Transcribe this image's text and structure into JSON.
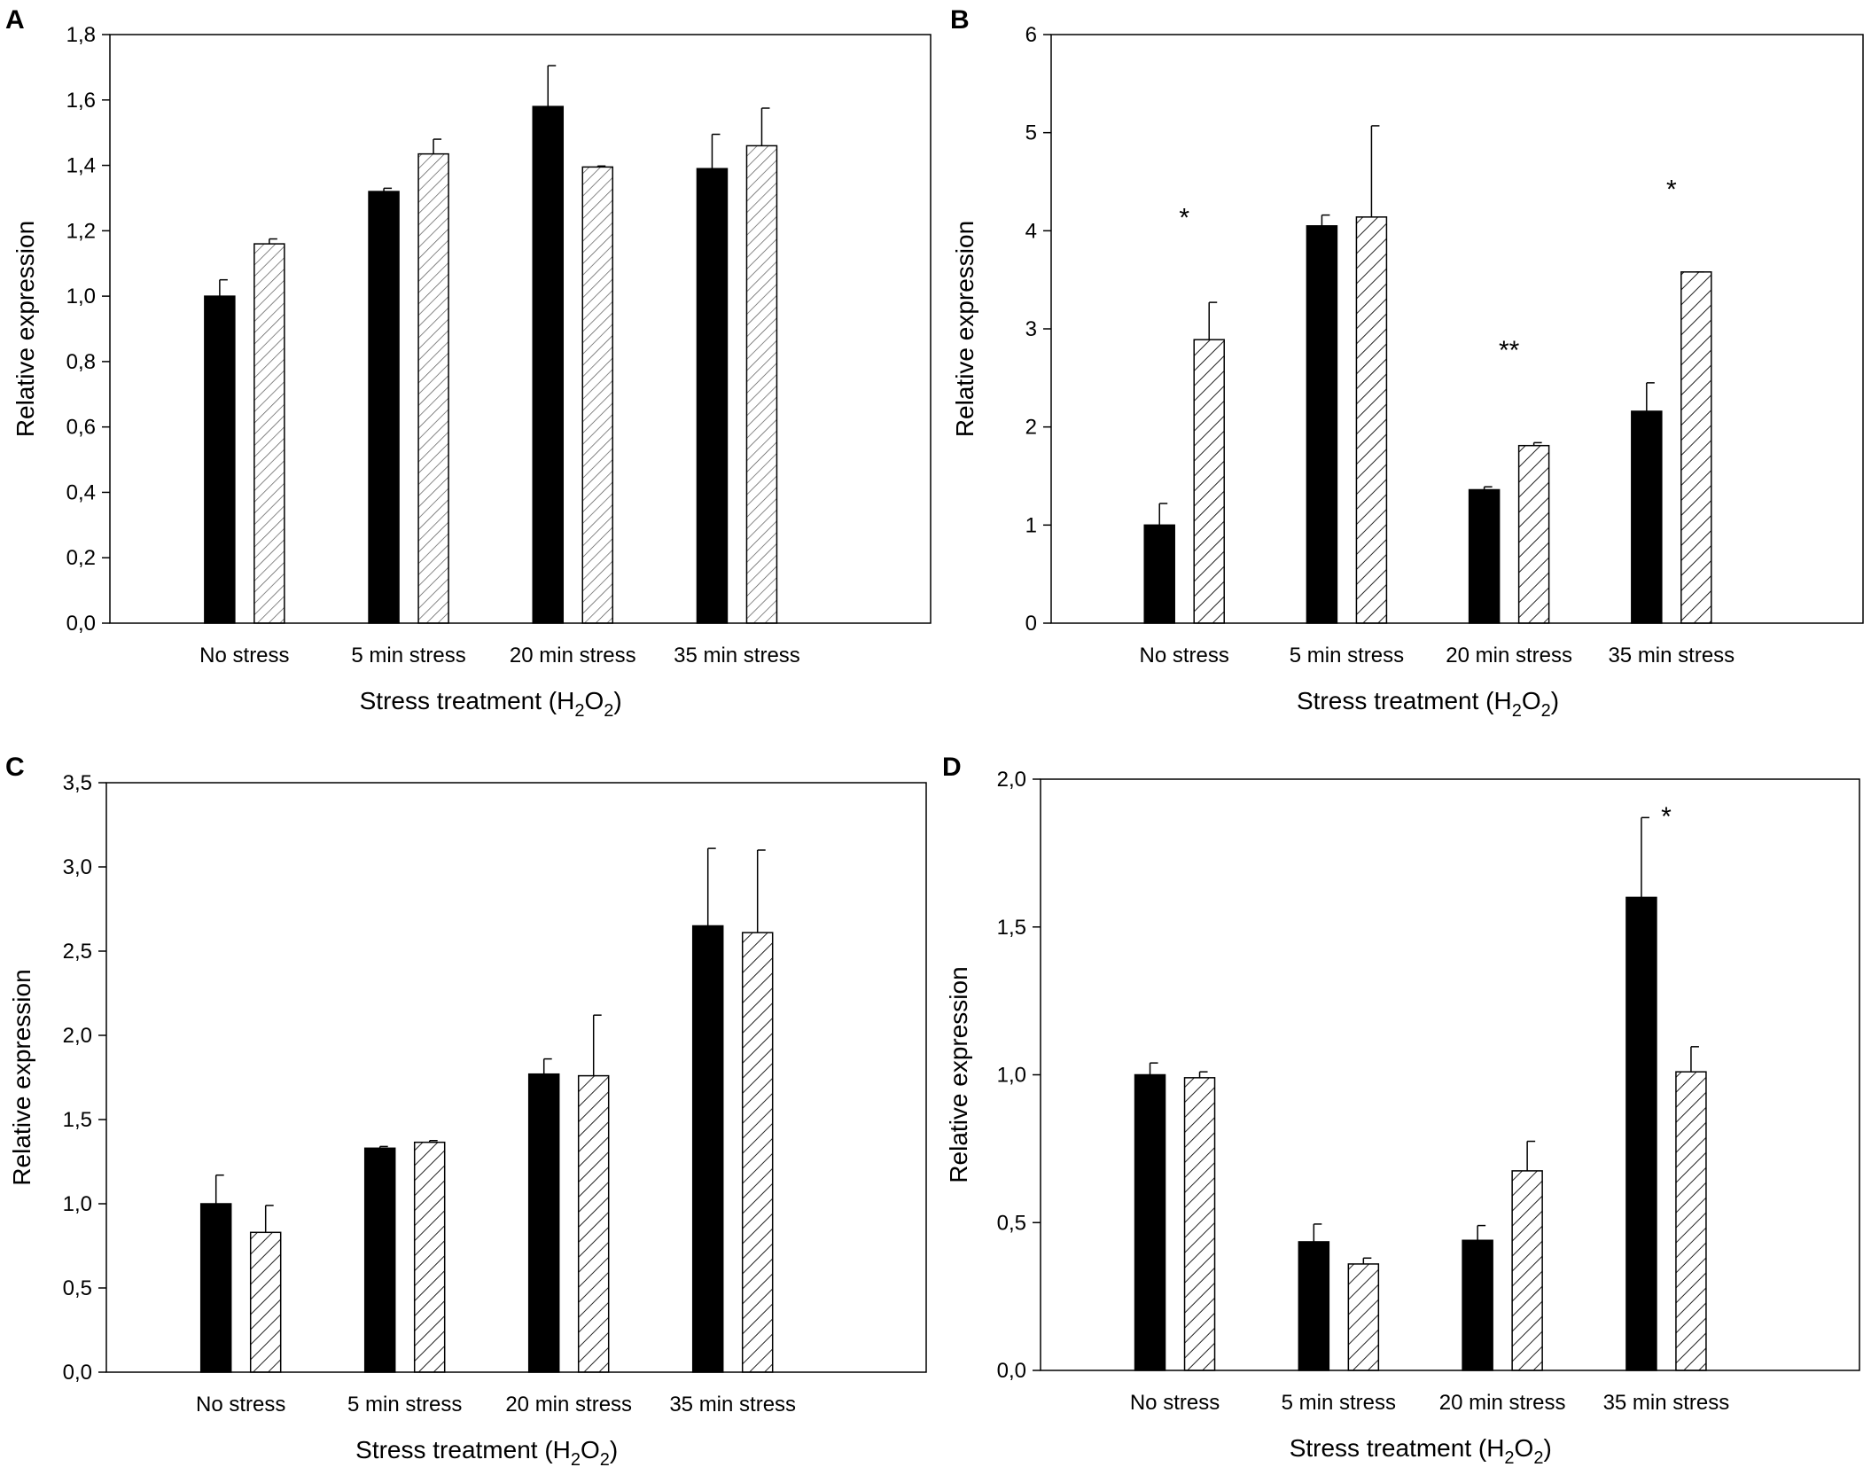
{
  "colors": {
    "black_bar": "#000000",
    "hatch_stroke": "#333333",
    "axis": "#000000",
    "background": "#ffffff"
  },
  "chart_data": [
    {
      "panel": "A",
      "type": "bar",
      "xlabel_main": "Stress treatment (H",
      "xlabel_sub1": "2",
      "xlabel_mid": "O",
      "xlabel_sub2": "2",
      "xlabel_close": ")",
      "ylabel": "Relative expression",
      "ylim": [
        0,
        1.8
      ],
      "yticks": [
        0,
        0.2,
        0.4,
        0.6,
        0.8,
        1.0,
        1.2,
        1.4,
        1.6,
        1.8
      ],
      "ytick_labels": [
        "0,0",
        "0,2",
        "0,4",
        "0,6",
        "0,8",
        "1,0",
        "1,2",
        "1,4",
        "1,6",
        "1,8"
      ],
      "categories": [
        "No stress",
        "5 min stress",
        "20 min stress",
        "35 min stress"
      ],
      "hatch": "fine",
      "series": [
        {
          "name": "solid",
          "fill": "black",
          "values": [
            1.0,
            1.32,
            1.58,
            1.39
          ],
          "errors": [
            0.05,
            0.01,
            0.125,
            0.105
          ]
        },
        {
          "name": "hatched",
          "fill": "hatch",
          "values": [
            1.16,
            1.435,
            1.395,
            1.46
          ],
          "errors": [
            0.015,
            0.045,
            0.003,
            0.115
          ]
        }
      ],
      "annotations": []
    },
    {
      "panel": "B",
      "type": "bar",
      "xlabel_main": "Stress treatment (H",
      "xlabel_sub1": "2",
      "xlabel_mid": "O",
      "xlabel_sub2": "2",
      "xlabel_close": ")",
      "ylabel": "Relative expression",
      "ylim": [
        0,
        6
      ],
      "yticks": [
        0,
        1,
        2,
        3,
        4,
        5,
        6
      ],
      "ytick_labels": [
        "0",
        "1",
        "2",
        "3",
        "4",
        "5",
        "6"
      ],
      "categories": [
        "No stress",
        "5 min stress",
        "20 min stress",
        "35 min stress"
      ],
      "hatch": "coarse",
      "series": [
        {
          "name": "solid",
          "fill": "black",
          "values": [
            1.0,
            4.05,
            1.36,
            2.16
          ],
          "errors": [
            0.22,
            0.11,
            0.03,
            0.29
          ]
        },
        {
          "name": "hatched",
          "fill": "hatch",
          "values": [
            2.89,
            4.14,
            1.81,
            3.58
          ],
          "errors": [
            0.38,
            0.93,
            0.03,
            0.0
          ]
        }
      ],
      "annotations": [
        {
          "text": "*",
          "category": 0,
          "value": 4.15
        },
        {
          "text": "**",
          "category": 2,
          "value": 2.8
        },
        {
          "text": "*",
          "category": 3,
          "value": 4.44
        }
      ]
    },
    {
      "panel": "C",
      "type": "bar",
      "xlabel_main": "Stress treatment (H",
      "xlabel_sub1": "2",
      "xlabel_mid": "O",
      "xlabel_sub2": "2",
      "xlabel_close": ")",
      "ylabel": "Relative expression",
      "ylim": [
        0,
        3.5
      ],
      "yticks": [
        0,
        0.5,
        1.0,
        1.5,
        2.0,
        2.5,
        3.0,
        3.5
      ],
      "ytick_labels": [
        "0,0",
        "0,5",
        "1,0",
        "1,5",
        "2,0",
        "2,5",
        "3,0",
        "3,5"
      ],
      "categories": [
        "No stress",
        "5 min stress",
        "20 min stress",
        "35 min stress"
      ],
      "hatch": "coarse",
      "series": [
        {
          "name": "solid",
          "fill": "black",
          "values": [
            1.0,
            1.33,
            1.77,
            2.65
          ],
          "errors": [
            0.17,
            0.01,
            0.09,
            0.46
          ]
        },
        {
          "name": "hatched",
          "fill": "hatch",
          "values": [
            0.83,
            1.365,
            1.76,
            2.61
          ],
          "errors": [
            0.16,
            0.01,
            0.36,
            0.49
          ]
        }
      ],
      "annotations": []
    },
    {
      "panel": "D",
      "type": "bar",
      "xlabel_main": "Stress treatment (H",
      "xlabel_sub1": "2",
      "xlabel_mid": "O",
      "xlabel_sub2": "2",
      "xlabel_close": ")",
      "ylabel": "Relative expression",
      "ylim": [
        0,
        2.0
      ],
      "yticks": [
        0,
        0.5,
        1.0,
        1.5,
        2.0
      ],
      "ytick_labels": [
        "0,0",
        "0,5",
        "1,0",
        "1,5",
        "2,0"
      ],
      "categories": [
        "No stress",
        "5 min stress",
        "20 min stress",
        "35 min stress"
      ],
      "hatch": "coarse",
      "series": [
        {
          "name": "solid",
          "fill": "black",
          "values": [
            1.0,
            0.435,
            0.44,
            1.6
          ],
          "errors": [
            0.04,
            0.06,
            0.05,
            0.27
          ]
        },
        {
          "name": "hatched",
          "fill": "hatch",
          "values": [
            0.99,
            0.36,
            0.675,
            1.01
          ],
          "errors": [
            0.02,
            0.02,
            0.1,
            0.085
          ]
        }
      ],
      "annotations": [
        {
          "text": "*",
          "category": 3,
          "value": 1.88
        }
      ]
    }
  ]
}
